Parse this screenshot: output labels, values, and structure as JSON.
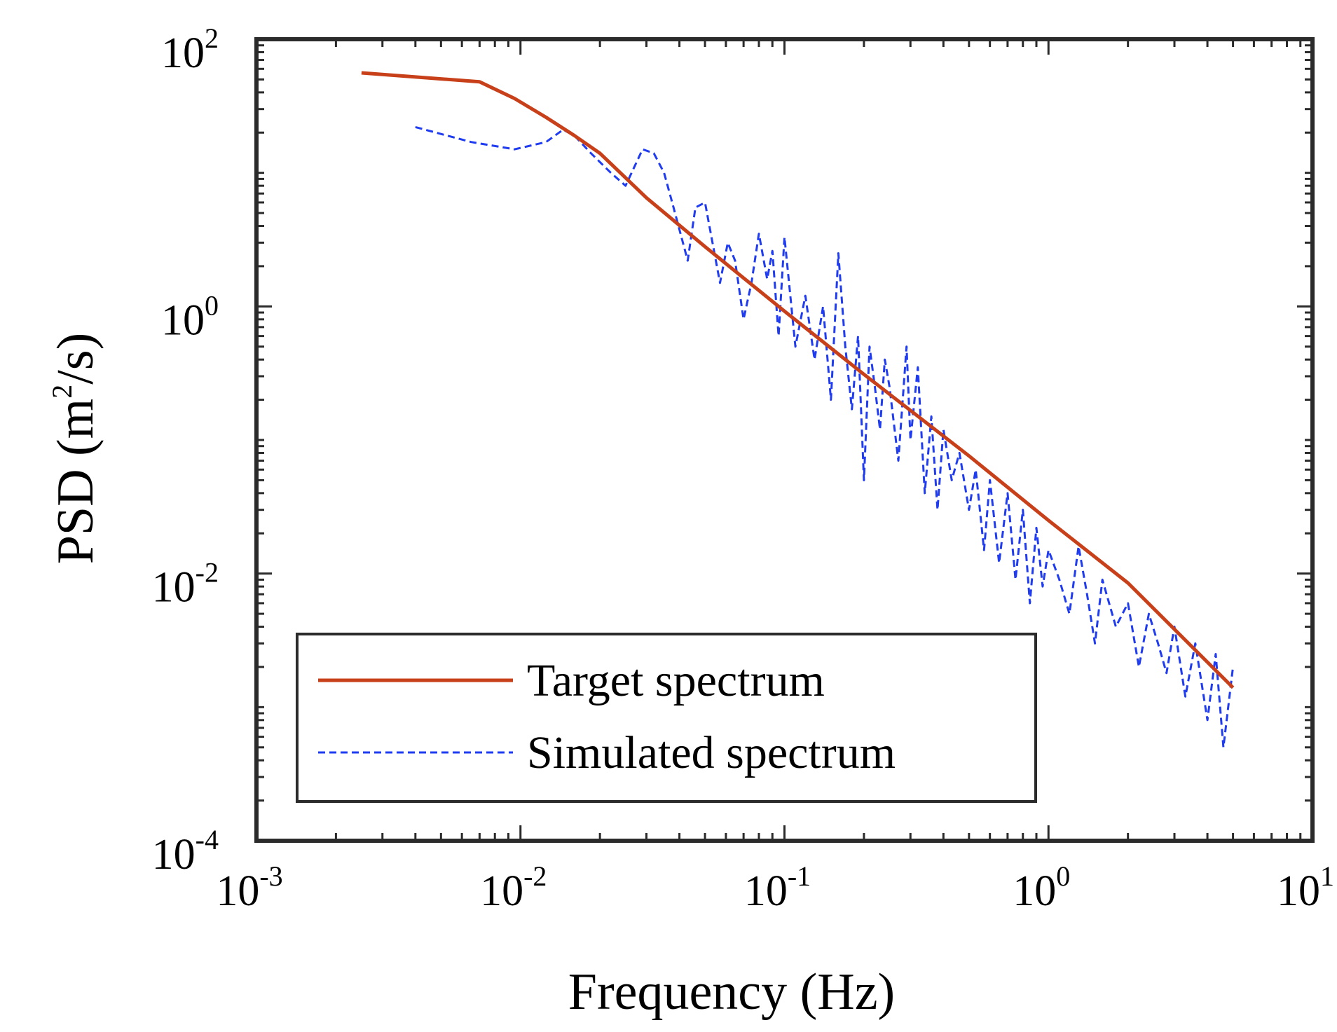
{
  "chart_data": {
    "type": "line",
    "xscale": "log",
    "yscale": "log",
    "xlabel": "Frequency (Hz)",
    "ylabel_main": "PSD (m",
    "ylabel_sup": "2",
    "ylabel_end": "/s)",
    "xlim": [
      0.001,
      10
    ],
    "ylim": [
      0.0001,
      100
    ],
    "x_ticks": [
      {
        "value": 0.001,
        "base": "10",
        "exp": "-3"
      },
      {
        "value": 0.01,
        "base": "10",
        "exp": "-2"
      },
      {
        "value": 0.1,
        "base": "10",
        "exp": "-1"
      },
      {
        "value": 1,
        "base": "10",
        "exp": "0"
      },
      {
        "value": 10,
        "base": "10",
        "exp": "1"
      }
    ],
    "y_ticks": [
      {
        "value": 0.0001,
        "base": "10",
        "exp": "-4"
      },
      {
        "value": 0.01,
        "base": "10",
        "exp": "-2"
      },
      {
        "value": 1,
        "base": "10",
        "exp": "0"
      },
      {
        "value": 100,
        "base": "10",
        "exp": "2"
      }
    ],
    "grid": false,
    "legend_position": "bottom-left",
    "series": [
      {
        "name": "Target spectrum",
        "color": "#c8401a",
        "style": "solid",
        "x": [
          0.0025,
          0.007,
          0.0095,
          0.0125,
          0.016,
          0.02,
          0.03,
          0.05,
          0.1,
          0.2,
          0.5,
          1,
          2,
          5
        ],
        "y": [
          56,
          48,
          36,
          26,
          19,
          14,
          6.5,
          2.8,
          0.92,
          0.31,
          0.076,
          0.025,
          0.0085,
          0.0014
        ]
      },
      {
        "name": "Simulated spectrum",
        "color": "#1f3cf0",
        "style": "dashed",
        "x": [
          0.004,
          0.0065,
          0.0095,
          0.0125,
          0.0145,
          0.016,
          0.0185,
          0.022,
          0.025,
          0.029,
          0.032,
          0.035,
          0.038,
          0.043,
          0.046,
          0.05,
          0.057,
          0.061,
          0.065,
          0.07,
          0.075,
          0.08,
          0.086,
          0.09,
          0.095,
          0.1,
          0.11,
          0.12,
          0.13,
          0.14,
          0.15,
          0.16,
          0.17,
          0.18,
          0.19,
          0.2,
          0.21,
          0.22,
          0.23,
          0.24,
          0.25,
          0.27,
          0.29,
          0.3,
          0.32,
          0.34,
          0.36,
          0.38,
          0.4,
          0.43,
          0.46,
          0.5,
          0.53,
          0.57,
          0.6,
          0.65,
          0.7,
          0.75,
          0.8,
          0.85,
          0.9,
          0.95,
          1,
          1.1,
          1.2,
          1.3,
          1.4,
          1.5,
          1.6,
          1.8,
          2,
          2.2,
          2.4,
          2.6,
          2.8,
          3,
          3.3,
          3.6,
          4,
          4.3,
          4.6,
          5
        ],
        "y": [
          22,
          17,
          15,
          17,
          21,
          19,
          14,
          10,
          8,
          15,
          14,
          10,
          5.5,
          2.2,
          5.5,
          6,
          1.5,
          3,
          2.2,
          0.8,
          1.5,
          3.5,
          1.6,
          2.6,
          0.6,
          3.3,
          0.5,
          1.2,
          0.4,
          1,
          0.2,
          2.5,
          0.5,
          0.17,
          0.6,
          0.05,
          0.5,
          0.25,
          0.12,
          0.4,
          0.25,
          0.07,
          0.5,
          0.1,
          0.35,
          0.04,
          0.15,
          0.03,
          0.12,
          0.05,
          0.08,
          0.03,
          0.06,
          0.015,
          0.05,
          0.012,
          0.04,
          0.009,
          0.03,
          0.006,
          0.022,
          0.008,
          0.015,
          0.009,
          0.005,
          0.016,
          0.007,
          0.003,
          0.009,
          0.004,
          0.006,
          0.002,
          0.005,
          0.003,
          0.0018,
          0.004,
          0.0012,
          0.003,
          0.0008,
          0.0025,
          0.0005,
          0.002
        ]
      }
    ]
  }
}
